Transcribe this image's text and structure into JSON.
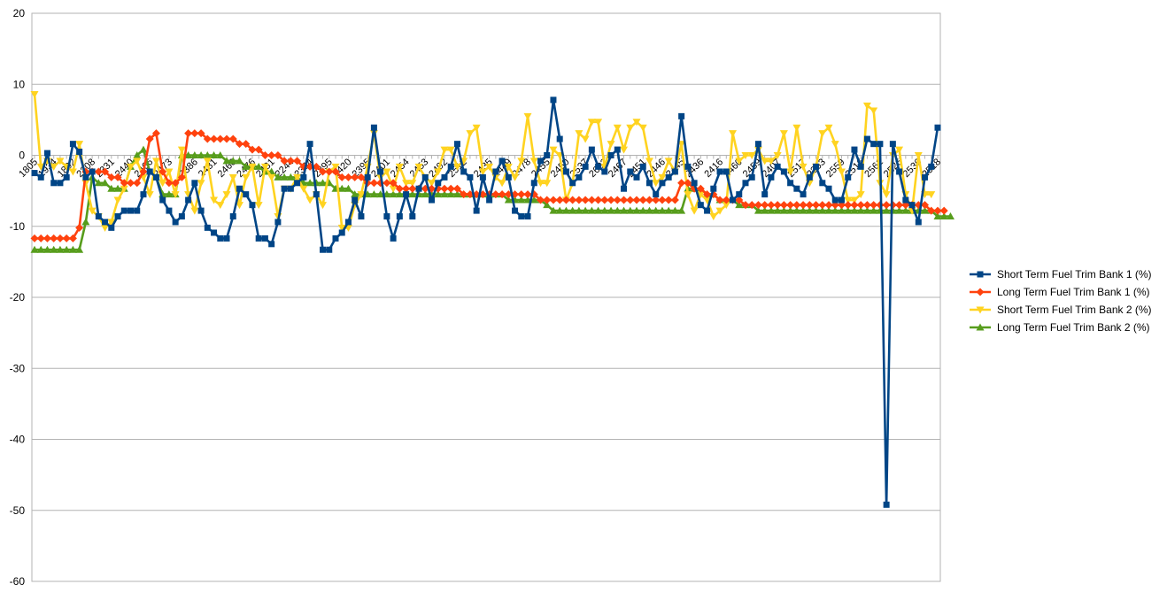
{
  "chart_data": {
    "type": "line",
    "title": "",
    "xlabel": "",
    "ylabel": "",
    "ylim": [
      -60,
      20
    ],
    "yticks": [
      20,
      10,
      0,
      -10,
      -20,
      -30,
      -40,
      -50,
      -60
    ],
    "grid": true,
    "legend_position": "right",
    "x_tick_labels": [
      "1805",
      "1934",
      "1892",
      "2208",
      "2331",
      "2440",
      "2466",
      "2473",
      "2386",
      "2431",
      "2460",
      "2476",
      "2431",
      "2244",
      "2384",
      "2395",
      "2420",
      "2395",
      "2401",
      "2454",
      "2453",
      "2492",
      "2512",
      "2435",
      "2449",
      "2478",
      "2455",
      "2450",
      "2537",
      "2603",
      "2467",
      "2451",
      "2446",
      "2445",
      "2436",
      "2416",
      "2460",
      "2459",
      "2407",
      "2517",
      "2363",
      "2559",
      "2516",
      "2561",
      "2526",
      "2536",
      "2518"
    ],
    "series": [
      {
        "name": "Short Term Fuel Trim Bank 1 (%)",
        "color": "#004586",
        "marker": "square",
        "values": [
          -2.5,
          -3.1,
          0.3,
          -3.9,
          -3.9,
          -3.1,
          1.6,
          0.5,
          -3.1,
          -2.3,
          -8.6,
          -9.4,
          -10.2,
          -8.6,
          -7.8,
          -7.8,
          -7.8,
          -5.5,
          -2.3,
          -3.1,
          -6.3,
          -7.8,
          -9.4,
          -8.6,
          -6.3,
          -3.9,
          -7.8,
          -10.2,
          -10.9,
          -11.7,
          -11.7,
          -8.6,
          -4.7,
          -5.5,
          -7.0,
          -11.7,
          -11.7,
          -12.5,
          -9.4,
          -4.7,
          -4.7,
          -3.9,
          -3.1,
          1.6,
          -5.5,
          -13.3,
          -13.3,
          -11.7,
          -10.9,
          -9.4,
          -6.3,
          -8.6,
          -3.1,
          3.9,
          -2.3,
          -8.6,
          -11.7,
          -8.6,
          -5.5,
          -8.6,
          -4.7,
          -3.1,
          -6.3,
          -3.9,
          -3.1,
          -1.6,
          1.6,
          -2.3,
          -3.1,
          -7.8,
          -3.1,
          -6.3,
          -2.3,
          -0.8,
          -3.1,
          -7.8,
          -8.6,
          -8.6,
          -3.9,
          -0.8,
          0.0,
          7.8,
          2.3,
          -2.3,
          -3.9,
          -3.1,
          -1.6,
          0.8,
          -1.6,
          -2.3,
          0.0,
          0.8,
          -4.7,
          -2.3,
          -3.1,
          -1.6,
          -3.9,
          -5.5,
          -3.9,
          -3.1,
          -2.3,
          5.5,
          -1.6,
          -3.9,
          -7.0,
          -7.8,
          -4.7,
          -2.3,
          -2.3,
          -6.3,
          -5.5,
          -3.9,
          -3.1,
          1.6,
          -5.5,
          -3.1,
          -1.6,
          -2.3,
          -3.9,
          -4.7,
          -5.5,
          -3.1,
          -1.6,
          -3.9,
          -4.7,
          -6.3,
          -6.3,
          -3.1,
          0.8,
          -1.6,
          2.3,
          1.6,
          1.6,
          -49.2,
          1.6,
          -2.3,
          -6.3,
          -7.0,
          -9.4,
          -3.1,
          -1.6,
          3.9
        ]
      },
      {
        "name": "Long Term Fuel Trim Bank 1 (%)",
        "color": "#ff420e",
        "marker": "diamond",
        "values": [
          -11.7,
          -11.7,
          -11.7,
          -11.7,
          -11.7,
          -11.7,
          -11.7,
          -10.2,
          -2.3,
          -2.3,
          -2.3,
          -2.3,
          -3.1,
          -3.1,
          -3.9,
          -3.9,
          -3.9,
          -2.3,
          2.3,
          3.1,
          -2.3,
          -3.9,
          -3.9,
          -3.1,
          3.1,
          3.1,
          3.1,
          2.3,
          2.3,
          2.3,
          2.3,
          2.3,
          1.6,
          1.6,
          0.8,
          0.8,
          0.0,
          0.0,
          0.0,
          -0.8,
          -0.8,
          -0.8,
          -1.6,
          -1.6,
          -1.6,
          -2.3,
          -2.3,
          -2.3,
          -3.1,
          -3.1,
          -3.1,
          -3.1,
          -3.9,
          -3.9,
          -3.9,
          -3.9,
          -3.9,
          -4.7,
          -4.7,
          -4.7,
          -4.7,
          -4.7,
          -4.7,
          -4.7,
          -4.7,
          -4.7,
          -4.7,
          -5.5,
          -5.5,
          -5.5,
          -5.5,
          -5.5,
          -5.5,
          -5.5,
          -5.5,
          -5.5,
          -5.5,
          -5.5,
          -5.5,
          -6.3,
          -6.3,
          -6.3,
          -6.3,
          -6.3,
          -6.3,
          -6.3,
          -6.3,
          -6.3,
          -6.3,
          -6.3,
          -6.3,
          -6.3,
          -6.3,
          -6.3,
          -6.3,
          -6.3,
          -6.3,
          -6.3,
          -6.3,
          -6.3,
          -6.3,
          -3.9,
          -3.9,
          -4.7,
          -4.7,
          -5.5,
          -5.5,
          -6.3,
          -6.3,
          -6.3,
          -6.3,
          -7.0,
          -7.0,
          -7.0,
          -7.0,
          -7.0,
          -7.0,
          -7.0,
          -7.0,
          -7.0,
          -7.0,
          -7.0,
          -7.0,
          -7.0,
          -7.0,
          -7.0,
          -7.0,
          -7.0,
          -7.0,
          -7.0,
          -7.0,
          -7.0,
          -7.0,
          -7.0,
          -7.0,
          -7.0,
          -7.0,
          -7.0,
          -7.0,
          -7.0,
          -7.8,
          -7.8,
          -7.8
        ]
      },
      {
        "name": "Short Term Fuel Trim Bank 2 (%)",
        "color": "#ffd320",
        "marker": "triangle-down",
        "values": [
          8.6,
          -1.6,
          -0.8,
          -1.6,
          -0.8,
          -1.6,
          -2.3,
          1.6,
          -3.9,
          -7.8,
          -8.6,
          -10.2,
          -9.4,
          -6.3,
          -4.7,
          -1.6,
          -0.8,
          -3.1,
          -5.5,
          -0.8,
          -3.9,
          -2.3,
          -5.5,
          0.8,
          -5.5,
          -7.8,
          -3.9,
          -0.8,
          -6.3,
          -7.0,
          -5.5,
          -3.1,
          -7.0,
          -3.1,
          -1.6,
          -7.0,
          -1.6,
          -3.1,
          -8.6,
          -4.7,
          -4.7,
          -3.1,
          -4.7,
          -6.3,
          -5.5,
          -7.0,
          -2.3,
          -1.6,
          -10.2,
          -10.2,
          -7.0,
          -5.5,
          -1.6,
          3.1,
          -3.1,
          -2.3,
          -4.7,
          -1.6,
          -3.9,
          -3.9,
          -1.6,
          -3.1,
          -3.9,
          -2.3,
          0.8,
          0.8,
          -1.6,
          -0.8,
          3.1,
          3.9,
          -2.3,
          -1.6,
          -3.1,
          -3.9,
          -1.6,
          -3.1,
          -0.8,
          5.5,
          -0.8,
          -3.9,
          -3.9,
          0.8,
          0.0,
          -6.3,
          -3.9,
          3.1,
          2.3,
          4.7,
          4.7,
          -1.6,
          1.6,
          3.9,
          0.8,
          3.9,
          4.7,
          3.9,
          -0.8,
          -3.9,
          -3.1,
          -0.8,
          -2.3,
          1.6,
          -5.5,
          -7.8,
          -5.5,
          -6.3,
          -8.6,
          -7.8,
          -7.0,
          3.1,
          -0.8,
          0.0,
          0.0,
          0.8,
          -0.8,
          -0.8,
          0.0,
          3.1,
          -2.3,
          3.9,
          -1.6,
          -3.9,
          -1.6,
          3.1,
          3.9,
          1.6,
          -2.3,
          -6.3,
          -6.3,
          -5.5,
          7.0,
          6.3,
          -3.9,
          -5.5,
          0.0,
          0.8,
          -5.5,
          -7.8,
          0.0,
          -5.5,
          -5.5
        ]
      },
      {
        "name": "Long Term Fuel Trim Bank 2 (%)",
        "color": "#579d1c",
        "marker": "triangle-up",
        "values": [
          -13.3,
          -13.3,
          -13.3,
          -13.3,
          -13.3,
          -13.3,
          -13.3,
          -13.3,
          -9.4,
          -3.1,
          -3.9,
          -3.9,
          -4.7,
          -4.7,
          -4.7,
          -1.6,
          0.0,
          0.8,
          -2.3,
          -3.1,
          -5.5,
          -5.5,
          -5.5,
          0.0,
          0.0,
          0.0,
          0.0,
          0.0,
          0.0,
          0.0,
          -0.8,
          -0.8,
          -0.8,
          -1.6,
          -1.6,
          -1.6,
          -2.3,
          -2.3,
          -3.1,
          -3.1,
          -3.1,
          -3.1,
          -3.9,
          -3.9,
          -3.9,
          -3.9,
          -3.9,
          -4.7,
          -4.7,
          -4.7,
          -5.5,
          -5.5,
          -5.5,
          -5.5,
          -5.5,
          -5.5,
          -5.5,
          -5.5,
          -5.5,
          -5.5,
          -5.5,
          -5.5,
          -5.5,
          -5.5,
          -5.5,
          -5.5,
          -5.5,
          -5.5,
          -5.5,
          -5.5,
          -5.5,
          -5.5,
          -5.5,
          -5.5,
          -6.3,
          -6.3,
          -6.3,
          -6.3,
          -6.3,
          -6.3,
          -7.0,
          -7.8,
          -7.8,
          -7.8,
          -7.8,
          -7.8,
          -7.8,
          -7.8,
          -7.8,
          -7.8,
          -7.8,
          -7.8,
          -7.8,
          -7.8,
          -7.8,
          -7.8,
          -7.8,
          -7.8,
          -7.8,
          -7.8,
          -7.8,
          -7.8,
          -4.7,
          -4.7,
          -4.7,
          -5.5,
          -5.5,
          -6.3,
          -6.3,
          -6.3,
          -7.0,
          -7.0,
          -7.0,
          -7.8,
          -7.8,
          -7.8,
          -7.8,
          -7.8,
          -7.8,
          -7.8,
          -7.8,
          -7.8,
          -7.8,
          -7.8,
          -7.8,
          -7.8,
          -7.8,
          -7.8,
          -7.8,
          -7.8,
          -7.8,
          -7.8,
          -7.8,
          -7.8,
          -7.8,
          -7.8,
          -7.8,
          -7.8,
          -7.8,
          -7.8,
          -7.8,
          -8.6,
          -8.6,
          -8.6
        ]
      }
    ]
  }
}
